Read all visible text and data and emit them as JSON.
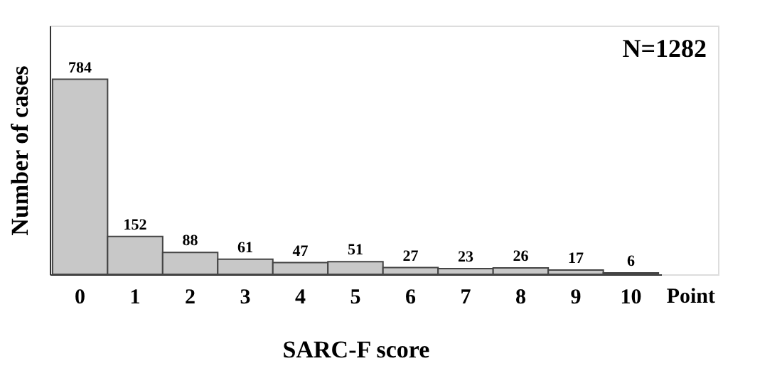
{
  "chart_data": {
    "type": "bar",
    "categories": [
      "0",
      "1",
      "2",
      "3",
      "4",
      "5",
      "6",
      "7",
      "8",
      "9",
      "10"
    ],
    "values": [
      784,
      152,
      88,
      61,
      47,
      51,
      27,
      23,
      26,
      17,
      6
    ],
    "color": "#c8c8c8",
    "ylim": [
      0,
      1000
    ],
    "data_labels": true,
    "xlabel": "SARC-F score",
    "ylabel": "Number of cases",
    "tick_labels": "x",
    "grid": false,
    "annotations": [
      "N=1282",
      "Point"
    ]
  }
}
